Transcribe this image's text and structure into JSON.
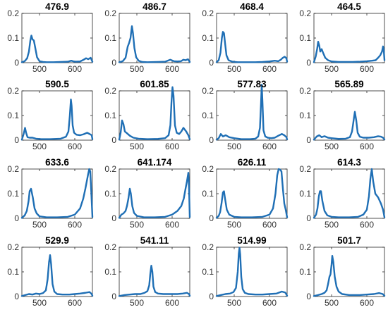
{
  "colors": {
    "line": "#1f6fb5",
    "axes": "#262626"
  },
  "chart_data": [
    {
      "type": "line",
      "title": "476.9",
      "xlim": [
        450,
        650
      ],
      "ylim": [
        0,
        0.2
      ],
      "xticks": [
        500,
        600
      ],
      "yticks": [
        0,
        0.1,
        0.2
      ],
      "x": [
        450,
        458,
        465,
        470,
        474,
        477,
        480,
        484,
        488,
        493,
        500,
        510,
        520,
        540,
        560,
        580,
        590,
        600,
        615,
        625,
        632,
        638,
        645,
        650
      ],
      "y": [
        0.002,
        0.006,
        0.018,
        0.045,
        0.09,
        0.11,
        0.095,
        0.09,
        0.06,
        0.022,
        0.006,
        0.003,
        0.002,
        0.002,
        0.003,
        0.004,
        0.008,
        0.004,
        0.005,
        0.012,
        0.018,
        0.014,
        0.02,
        0.004
      ]
    },
    {
      "type": "line",
      "title": "486.7",
      "xlim": [
        450,
        650
      ],
      "ylim": [
        0,
        0.2
      ],
      "xticks": [
        500,
        600
      ],
      "yticks": [
        0,
        0.1,
        0.2
      ],
      "x": [
        450,
        460,
        468,
        474,
        478,
        482,
        486,
        489,
        493,
        498,
        505,
        515,
        530,
        560,
        580,
        595,
        605,
        615,
        625,
        632,
        638,
        645,
        650
      ],
      "y": [
        0.002,
        0.006,
        0.02,
        0.065,
        0.08,
        0.1,
        0.148,
        0.12,
        0.06,
        0.022,
        0.008,
        0.003,
        0.002,
        0.003,
        0.004,
        0.012,
        0.006,
        0.005,
        0.006,
        0.012,
        0.01,
        0.014,
        0.003
      ]
    },
    {
      "type": "line",
      "title": "468.4",
      "xlim": [
        450,
        650
      ],
      "ylim": [
        0,
        0.2
      ],
      "xticks": [
        500,
        600
      ],
      "yticks": [
        0,
        0.1,
        0.2
      ],
      "x": [
        450,
        456,
        461,
        465,
        468,
        471,
        474,
        478,
        484,
        495,
        510,
        530,
        560,
        580,
        600,
        615,
        625,
        632,
        638,
        643,
        648,
        650
      ],
      "y": [
        0.002,
        0.01,
        0.04,
        0.1,
        0.125,
        0.12,
        0.08,
        0.03,
        0.01,
        0.004,
        0.002,
        0.002,
        0.002,
        0.003,
        0.005,
        0.008,
        0.006,
        0.012,
        0.02,
        0.024,
        0.018,
        0.004
      ]
    },
    {
      "type": "line",
      "title": "464.5",
      "xlim": [
        450,
        650
      ],
      "ylim": [
        0,
        0.2
      ],
      "xticks": [
        500,
        600
      ],
      "yticks": [
        0,
        0.1,
        0.2
      ],
      "x": [
        450,
        455,
        459,
        462,
        465,
        468,
        472,
        476,
        482,
        490,
        500,
        520,
        560,
        580,
        600,
        615,
        625,
        632,
        638,
        643,
        646,
        648,
        650
      ],
      "y": [
        0.002,
        0.025,
        0.055,
        0.085,
        0.07,
        0.045,
        0.055,
        0.04,
        0.02,
        0.01,
        0.005,
        0.003,
        0.003,
        0.004,
        0.006,
        0.008,
        0.01,
        0.02,
        0.03,
        0.045,
        0.066,
        0.05,
        0.01
      ]
    },
    {
      "type": "line",
      "title": "590.5",
      "xlim": [
        450,
        650
      ],
      "ylim": [
        0,
        0.2
      ],
      "xticks": [
        500,
        600
      ],
      "yticks": [
        0,
        0.1,
        0.2
      ],
      "x": [
        450,
        455,
        459,
        462,
        466,
        472,
        480,
        490,
        505,
        530,
        560,
        575,
        582,
        586,
        589,
        591,
        594,
        598,
        605,
        615,
        625,
        635,
        642,
        648,
        650
      ],
      "y": [
        0.002,
        0.025,
        0.05,
        0.03,
        0.012,
        0.01,
        0.01,
        0.006,
        0.004,
        0.004,
        0.006,
        0.014,
        0.035,
        0.1,
        0.165,
        0.14,
        0.06,
        0.03,
        0.022,
        0.02,
        0.024,
        0.03,
        0.025,
        0.02,
        0.004
      ]
    },
    {
      "type": "line",
      "title": "601.85",
      "xlim": [
        450,
        650
      ],
      "ylim": [
        0,
        0.2
      ],
      "xticks": [
        500,
        600
      ],
      "yticks": [
        0,
        0.1,
        0.2
      ],
      "x": [
        450,
        454,
        458,
        462,
        466,
        472,
        480,
        490,
        505,
        530,
        560,
        580,
        590,
        595,
        598,
        601,
        604,
        608,
        613,
        620,
        626,
        632,
        640,
        646,
        650
      ],
      "y": [
        0.002,
        0.03,
        0.08,
        0.065,
        0.035,
        0.028,
        0.018,
        0.01,
        0.006,
        0.004,
        0.005,
        0.008,
        0.02,
        0.06,
        0.15,
        0.215,
        0.18,
        0.06,
        0.03,
        0.025,
        0.035,
        0.05,
        0.035,
        0.02,
        0.004
      ]
    },
    {
      "type": "line",
      "title": "577.83",
      "xlim": [
        450,
        650
      ],
      "ylim": [
        0,
        0.2
      ],
      "xticks": [
        500,
        600
      ],
      "yticks": [
        0,
        0.1,
        0.2
      ],
      "x": [
        450,
        456,
        462,
        468,
        476,
        486,
        500,
        520,
        545,
        560,
        568,
        573,
        576,
        578,
        580,
        583,
        588,
        595,
        605,
        615,
        625,
        635,
        642,
        648,
        650
      ],
      "y": [
        0.002,
        0.008,
        0.025,
        0.015,
        0.02,
        0.012,
        0.008,
        0.004,
        0.004,
        0.006,
        0.015,
        0.05,
        0.15,
        0.225,
        0.16,
        0.04,
        0.015,
        0.01,
        0.008,
        0.01,
        0.018,
        0.025,
        0.02,
        0.012,
        0.003
      ]
    },
    {
      "type": "line",
      "title": "565.89",
      "xlim": [
        450,
        650
      ],
      "ylim": [
        0,
        0.2
      ],
      "xticks": [
        500,
        600
      ],
      "yticks": [
        0,
        0.1,
        0.2
      ],
      "x": [
        450,
        458,
        465,
        472,
        480,
        490,
        500,
        520,
        540,
        552,
        558,
        562,
        566,
        570,
        574,
        580,
        590,
        605,
        620,
        632,
        640,
        646,
        650
      ],
      "y": [
        0.002,
        0.015,
        0.02,
        0.012,
        0.016,
        0.01,
        0.008,
        0.005,
        0.006,
        0.012,
        0.035,
        0.075,
        0.115,
        0.08,
        0.03,
        0.014,
        0.01,
        0.01,
        0.012,
        0.016,
        0.014,
        0.01,
        0.003
      ]
    },
    {
      "type": "line",
      "title": "633.6",
      "xlim": [
        450,
        650
      ],
      "ylim": [
        0,
        0.2
      ],
      "xticks": [
        500,
        600
      ],
      "yticks": [
        0,
        0.1,
        0.2
      ],
      "x": [
        450,
        458,
        464,
        469,
        472,
        476,
        481,
        486,
        492,
        500,
        520,
        550,
        580,
        600,
        615,
        624,
        630,
        634,
        638,
        641,
        644,
        647,
        650
      ],
      "y": [
        0.002,
        0.012,
        0.03,
        0.07,
        0.11,
        0.12,
        0.085,
        0.04,
        0.02,
        0.008,
        0.004,
        0.004,
        0.006,
        0.015,
        0.04,
        0.08,
        0.12,
        0.15,
        0.18,
        0.2,
        0.19,
        0.1,
        0.005
      ]
    },
    {
      "type": "line",
      "title": "641.174",
      "xlim": [
        450,
        650
      ],
      "ylim": [
        0,
        0.2
      ],
      "xticks": [
        500,
        600
      ],
      "yticks": [
        0,
        0.1,
        0.2
      ],
      "x": [
        450,
        456,
        462,
        468,
        472,
        476,
        480,
        483,
        487,
        492,
        500,
        520,
        550,
        580,
        600,
        615,
        626,
        633,
        638,
        642,
        646,
        648,
        650
      ],
      "y": [
        0.002,
        0.015,
        0.02,
        0.03,
        0.05,
        0.08,
        0.12,
        0.1,
        0.05,
        0.022,
        0.01,
        0.004,
        0.004,
        0.006,
        0.015,
        0.03,
        0.05,
        0.08,
        0.12,
        0.15,
        0.185,
        0.12,
        0.005
      ]
    },
    {
      "type": "line",
      "title": "626.11",
      "xlim": [
        450,
        650
      ],
      "ylim": [
        0,
        0.2
      ],
      "xticks": [
        500,
        600
      ],
      "yticks": [
        0,
        0.1,
        0.2
      ],
      "x": [
        450,
        456,
        460,
        464,
        468,
        471,
        474,
        479,
        486,
        500,
        520,
        550,
        580,
        600,
        610,
        617,
        622,
        626,
        630,
        634,
        638,
        642,
        646,
        650
      ],
      "y": [
        0.002,
        0.01,
        0.025,
        0.06,
        0.105,
        0.11,
        0.08,
        0.035,
        0.015,
        0.006,
        0.004,
        0.004,
        0.006,
        0.015,
        0.04,
        0.1,
        0.175,
        0.2,
        0.198,
        0.19,
        0.12,
        0.06,
        0.035,
        0.004
      ]
    },
    {
      "type": "line",
      "title": "614.3",
      "xlim": [
        450,
        650
      ],
      "ylim": [
        0,
        0.2
      ],
      "xticks": [
        500,
        600
      ],
      "yticks": [
        0,
        0.1,
        0.2
      ],
      "x": [
        450,
        456,
        460,
        464,
        467,
        470,
        474,
        480,
        488,
        500,
        520,
        550,
        575,
        590,
        600,
        606,
        610,
        614,
        618,
        624,
        632,
        640,
        646,
        650
      ],
      "y": [
        0.002,
        0.015,
        0.04,
        0.09,
        0.11,
        0.11,
        0.07,
        0.03,
        0.012,
        0.006,
        0.004,
        0.004,
        0.006,
        0.015,
        0.035,
        0.09,
        0.16,
        0.2,
        0.15,
        0.1,
        0.085,
        0.06,
        0.035,
        0.004
      ]
    },
    {
      "type": "line",
      "title": "529.9",
      "xlim": [
        450,
        650
      ],
      "ylim": [
        0,
        0.2
      ],
      "xticks": [
        500,
        600
      ],
      "yticks": [
        0,
        0.1,
        0.2
      ],
      "x": [
        450,
        460,
        470,
        480,
        490,
        500,
        510,
        518,
        523,
        527,
        530,
        533,
        537,
        542,
        550,
        565,
        585,
        600,
        615,
        630,
        642,
        648,
        650
      ],
      "y": [
        0.002,
        0.006,
        0.01,
        0.008,
        0.012,
        0.01,
        0.014,
        0.025,
        0.07,
        0.14,
        0.168,
        0.13,
        0.05,
        0.02,
        0.01,
        0.008,
        0.008,
        0.01,
        0.012,
        0.015,
        0.018,
        0.01,
        0.003
      ]
    },
    {
      "type": "line",
      "title": "541.11",
      "xlim": [
        450,
        650
      ],
      "ylim": [
        0,
        0.2
      ],
      "xticks": [
        500,
        600
      ],
      "yticks": [
        0,
        0.1,
        0.2
      ],
      "x": [
        450,
        465,
        480,
        495,
        510,
        522,
        530,
        535,
        538,
        541,
        544,
        547,
        552,
        560,
        575,
        595,
        615,
        630,
        642,
        648,
        650
      ],
      "y": [
        0.002,
        0.006,
        0.008,
        0.01,
        0.01,
        0.015,
        0.022,
        0.045,
        0.09,
        0.125,
        0.1,
        0.04,
        0.018,
        0.012,
        0.01,
        0.01,
        0.01,
        0.012,
        0.015,
        0.01,
        0.003
      ]
    },
    {
      "type": "line",
      "title": "514.99",
      "xlim": [
        450,
        650
      ],
      "ylim": [
        0,
        0.2
      ],
      "xticks": [
        500,
        600
      ],
      "yticks": [
        0,
        0.1,
        0.2
      ],
      "x": [
        450,
        462,
        475,
        488,
        498,
        505,
        510,
        513,
        515,
        517,
        520,
        524,
        530,
        540,
        560,
        580,
        600,
        620,
        635,
        645,
        650
      ],
      "y": [
        0.002,
        0.006,
        0.01,
        0.012,
        0.018,
        0.035,
        0.1,
        0.175,
        0.198,
        0.17,
        0.08,
        0.03,
        0.015,
        0.01,
        0.008,
        0.008,
        0.01,
        0.012,
        0.02,
        0.016,
        0.003
      ]
    },
    {
      "type": "line",
      "title": "501.7",
      "xlim": [
        450,
        650
      ],
      "ylim": [
        0,
        0.2
      ],
      "xticks": [
        500,
        600
      ],
      "yticks": [
        0,
        0.1,
        0.2
      ],
      "x": [
        450,
        462,
        472,
        480,
        486,
        490,
        494,
        497,
        500,
        502,
        505,
        509,
        514,
        520,
        530,
        550,
        580,
        600,
        620,
        635,
        645,
        650
      ],
      "y": [
        0.002,
        0.006,
        0.01,
        0.015,
        0.025,
        0.05,
        0.08,
        0.09,
        0.13,
        0.165,
        0.14,
        0.08,
        0.04,
        0.02,
        0.01,
        0.006,
        0.006,
        0.008,
        0.01,
        0.014,
        0.01,
        0.003
      ]
    }
  ]
}
